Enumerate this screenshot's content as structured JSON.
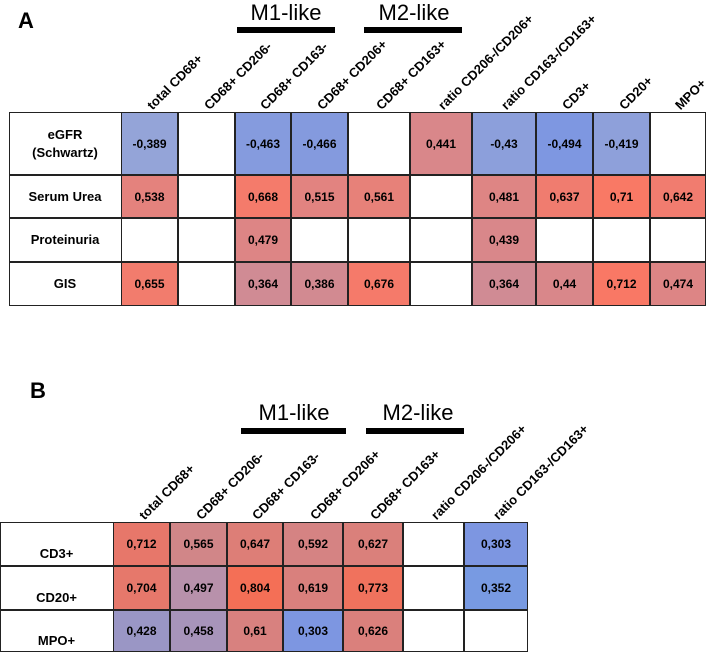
{
  "chart_data": [
    {
      "type": "heatmap",
      "panel": "A",
      "group_labels": [
        "M1-like",
        "M2-like"
      ],
      "columns": [
        "total CD68+",
        "CD68+ CD206-",
        "CD68+ CD163-",
        "CD68+ CD206+",
        "CD68+ CD163+",
        "ratio CD206-/CD206+",
        "ratio CD163-/CD163+",
        "CD3+",
        "CD20+",
        "MPO+"
      ],
      "rows": [
        "eGFR\n(Schwartz)",
        "Serum Urea",
        "Proteinuria",
        "GIS"
      ],
      "values": [
        [
          "-0,389",
          "",
          "-0,463",
          "-0,466",
          "",
          "0,441",
          "-0,43",
          "-0,494",
          "-0,419",
          ""
        ],
        [
          "0,538",
          "",
          "0,668",
          "0,515",
          "0,561",
          "",
          "0,481",
          "0,637",
          "0,71",
          "0,642"
        ],
        [
          "",
          "",
          "0,479",
          "",
          "",
          "",
          "0,439",
          "",
          "",
          ""
        ],
        [
          "0,655",
          "",
          "0,364",
          "0,386",
          "0,676",
          "",
          "0,364",
          "0,44",
          "0,712",
          "0,474"
        ]
      ],
      "colors": {
        "negative": "#8c9fd6",
        "positive": "#e07a6e",
        "empty": "#ffffff"
      }
    },
    {
      "type": "heatmap",
      "panel": "B",
      "group_labels": [
        "M1-like",
        "M2-like"
      ],
      "columns": [
        "total CD68+",
        "CD68+ CD206-",
        "CD68+ CD163-",
        "CD68+ CD206+",
        "CD68+ CD163+",
        "ratio CD206-/CD206+",
        "ratio CD163-/CD163+"
      ],
      "rows": [
        "CD3+",
        "CD20+",
        "MPO+"
      ],
      "values": [
        [
          "0,712",
          "0,565",
          "0,647",
          "0,592",
          "0,627",
          "",
          "0,303"
        ],
        [
          "0,704",
          "0,497",
          "0,804",
          "0,619",
          "0,773",
          "",
          "0,352"
        ],
        [
          "0,428",
          "0,458",
          "0,61",
          "0,303",
          "0,626",
          "",
          ""
        ]
      ],
      "colors": {
        "positive": "#e07a6e",
        "blue": "#7b97df",
        "empty": "#ffffff"
      }
    }
  ]
}
